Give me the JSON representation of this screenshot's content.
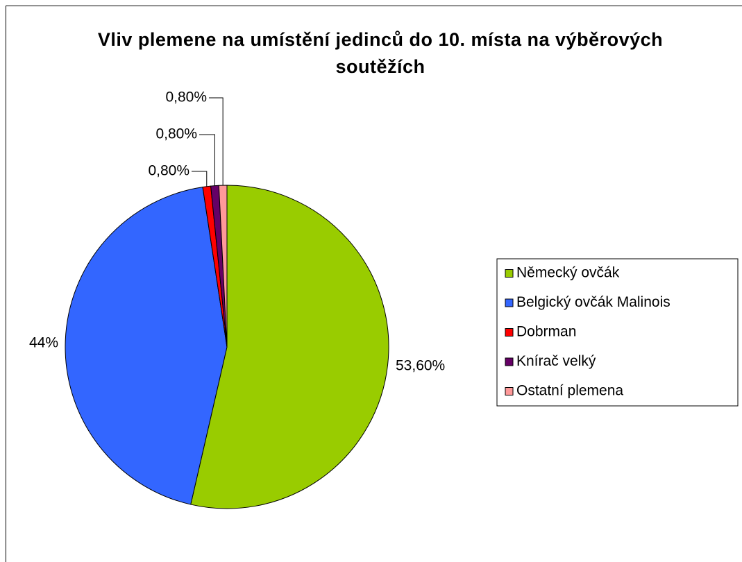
{
  "chart_data": {
    "type": "pie",
    "title": "Vliv plemene na umístění jedinců do 10. místa na výběrových soutěžích",
    "categories": [
      "Německý ovčák",
      "Belgický ovčák Malinois",
      "Dobrman",
      "Knírač velký",
      "Ostatní plemena"
    ],
    "values": [
      53.6,
      44,
      0.8,
      0.8,
      0.8
    ],
    "value_labels": [
      "53,60%",
      "44%",
      "0,80%",
      "0,80%",
      "0,80%"
    ],
    "colors": [
      "#99cc00",
      "#3366ff",
      "#ff0000",
      "#660066",
      "#ff9999"
    ],
    "legend": "right"
  }
}
